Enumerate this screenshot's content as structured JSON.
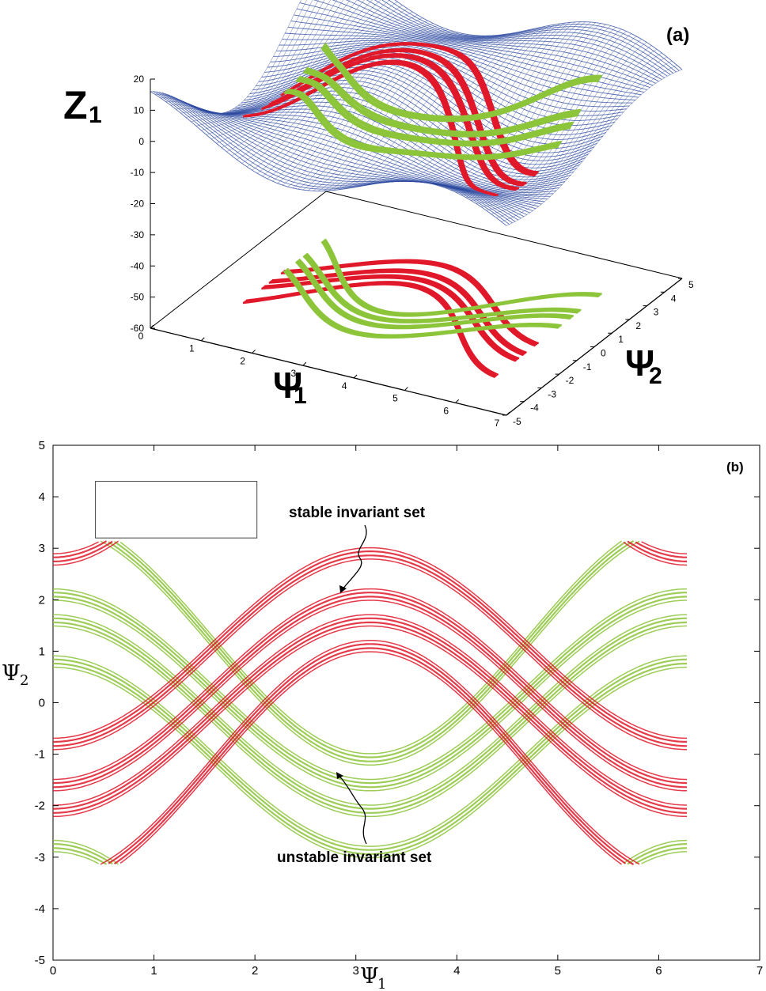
{
  "chart_data": [
    {
      "panel": "(a)",
      "type": "surface3d",
      "zlabel": "Z",
      "zlabel_sub": "1",
      "xlabel": "Ψ",
      "xlabel_sub": "1",
      "ylabel": "Ψ",
      "ylabel_sub": "2",
      "x_ticks": [
        0,
        1,
        2,
        3,
        4,
        5,
        6,
        7
      ],
      "y_ticks": [
        -5,
        -4,
        -3,
        -2,
        -1,
        0,
        1,
        2,
        3,
        4,
        5
      ],
      "z_ticks": [
        20,
        10,
        0,
        -10,
        -20,
        -30,
        -40,
        -50,
        -60
      ],
      "xlim": [
        0,
        7
      ],
      "ylim": [
        -5,
        5
      ],
      "zlim": [
        -60,
        20
      ],
      "colors": {
        "surface": "#2d4aa0",
        "stable": "#8cc43a",
        "unstable": "#e0182a"
      },
      "series": [
        {
          "name": "",
          "color": "#2d4aa0",
          "kind": "surface"
        },
        {
          "name": "",
          "color": "#e0182a",
          "kind": "unstable set on surface and projection"
        },
        {
          "name": "",
          "color": "#8cc43a",
          "kind": "stable set on surface and projection"
        }
      ]
    },
    {
      "panel": "(b)",
      "type": "scatter",
      "xlabel": "Ψ",
      "xlabel_sub": "1",
      "ylabel": "Ψ",
      "ylabel_sub": "2",
      "xlim": [
        0,
        7
      ],
      "ylim": [
        -5,
        5
      ],
      "x_ticks": [
        0,
        1,
        2,
        3,
        4,
        5,
        6,
        7
      ],
      "y_ticks": [
        -5,
        -4,
        -3,
        -2,
        -1,
        0,
        1,
        2,
        3,
        4,
        5
      ],
      "grid": false,
      "annotations": [
        {
          "text": "stable invariant set",
          "points_to": [
            2.85,
            1.9
          ]
        },
        {
          "text": "unstable invariant set",
          "points_to": [
            2.85,
            -1.85
          ]
        }
      ],
      "inset_box": {
        "x": [
          0.42,
          2.02
        ],
        "y": [
          3.2,
          4.3
        ]
      },
      "series": [
        {
          "name": "",
          "color": "#8cc43a",
          "role": "stable invariant set",
          "x_range": [
            0,
            6.28
          ],
          "curves": [
            {
              "A": 2.3,
              "B": 1.2,
              "n": 4
            },
            {
              "A": 1.85,
              "B": 0.25,
              "n": 4
            },
            {
              "A": 1.85,
              "B": -0.25,
              "n": 4
            },
            {
              "A": 1.85,
              "B": -1.05,
              "n": 4
            }
          ]
        },
        {
          "name": "",
          "color": "#e0182a",
          "role": "unstable invariant set",
          "x_range": [
            0,
            6.28
          ],
          "curves": [
            {
              "A": -2.3,
              "B": -1.2,
              "n": 4
            },
            {
              "A": -1.85,
              "B": -0.25,
              "n": 4
            },
            {
              "A": -1.85,
              "B": 0.25,
              "n": 4
            },
            {
              "A": -1.85,
              "B": 1.05,
              "n": 4
            }
          ]
        }
      ]
    }
  ]
}
